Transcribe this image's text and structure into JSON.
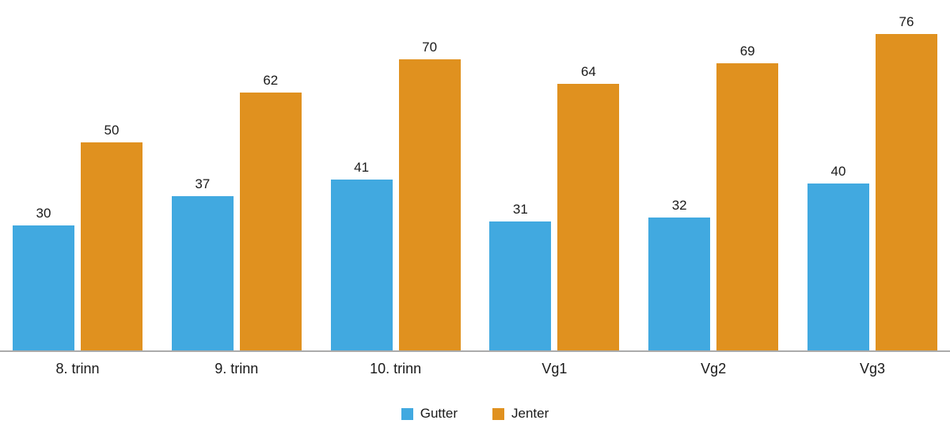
{
  "chart_data": {
    "type": "bar",
    "title": "",
    "xlabel": "",
    "ylabel": "",
    "categories": [
      "8. trinn",
      "9. trinn",
      "10. trinn",
      "Vg1",
      "Vg2",
      "Vg3"
    ],
    "series": [
      {
        "name": "Gutter",
        "color": "#41A9E0",
        "values": [
          30,
          37,
          41,
          31,
          32,
          40
        ]
      },
      {
        "name": "Jenter",
        "color": "#E0911F",
        "values": [
          50,
          62,
          70,
          64,
          69,
          76
        ]
      }
    ],
    "ylim": [
      0,
      80
    ],
    "grid": false,
    "legend_position": "bottom",
    "baseline_color": "#ababab",
    "value_labels_shown": true
  }
}
